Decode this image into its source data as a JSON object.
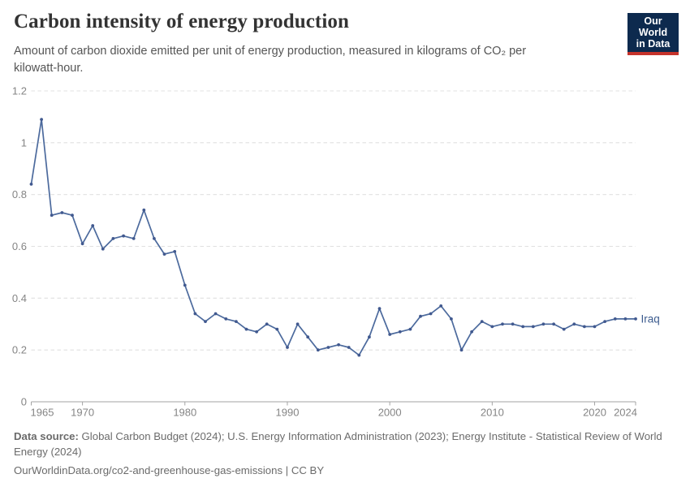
{
  "header": {
    "title": "Carbon intensity of energy production",
    "subtitle": "Amount of carbon dioxide emitted per unit of energy production, measured in kilograms of CO₂ per kilowatt-hour.",
    "logo": {
      "line1": "Our World",
      "line2": "in Data"
    }
  },
  "chart_data": {
    "type": "line",
    "title": "Carbon intensity of energy production",
    "xlabel": "",
    "ylabel": "",
    "xlim": [
      1965,
      2024
    ],
    "ylim": [
      0,
      1.2
    ],
    "x_ticks": [
      1965,
      1970,
      1980,
      1990,
      2000,
      2010,
      2020,
      2024
    ],
    "y_ticks": [
      0,
      0.2,
      0.4,
      0.6,
      0.8,
      1,
      1.2
    ],
    "grid": "horizontal-dashed",
    "legend_position": "end-of-line",
    "series": [
      {
        "name": "Iraq",
        "x": [
          1965,
          1966,
          1967,
          1968,
          1969,
          1970,
          1971,
          1972,
          1973,
          1974,
          1975,
          1976,
          1977,
          1978,
          1979,
          1980,
          1981,
          1982,
          1983,
          1984,
          1985,
          1986,
          1987,
          1988,
          1989,
          1990,
          1991,
          1992,
          1993,
          1994,
          1995,
          1996,
          1997,
          1998,
          1999,
          2000,
          2001,
          2002,
          2003,
          2004,
          2005,
          2006,
          2007,
          2008,
          2009,
          2010,
          2011,
          2012,
          2013,
          2014,
          2015,
          2016,
          2017,
          2018,
          2019,
          2020,
          2021,
          2022,
          2023,
          2024
        ],
        "values": [
          0.84,
          1.09,
          0.72,
          0.73,
          0.72,
          0.61,
          0.68,
          0.59,
          0.63,
          0.64,
          0.63,
          0.74,
          0.63,
          0.57,
          0.58,
          0.45,
          0.34,
          0.31,
          0.34,
          0.32,
          0.31,
          0.28,
          0.27,
          0.3,
          0.28,
          0.21,
          0.3,
          0.25,
          0.2,
          0.21,
          0.22,
          0.21,
          0.18,
          0.25,
          0.36,
          0.26,
          0.27,
          0.28,
          0.33,
          0.34,
          0.37,
          0.32,
          0.2,
          0.27,
          0.31,
          0.29,
          0.3,
          0.3,
          0.29,
          0.29,
          0.3,
          0.3,
          0.28,
          0.3,
          0.29,
          0.29,
          0.31,
          0.32,
          0.32,
          0.32
        ]
      }
    ],
    "colors": {
      "line": "#4c6a9d",
      "marker": "#41598f",
      "series_label": "#3d5c8f",
      "gridline": "#e0e0e0",
      "axis": "#a3a3a3",
      "tick_label": "#858585"
    }
  },
  "footer": {
    "source_label": "Data source:",
    "source_text": " Global Carbon Budget (2024); U.S. Energy Information Administration (2023); Energy Institute - Statistical Review of World Energy (2024)",
    "url_text": "OurWorldinData.org/co2-and-greenhouse-gas-emissions",
    "divider": " | ",
    "license_text": "CC BY"
  }
}
